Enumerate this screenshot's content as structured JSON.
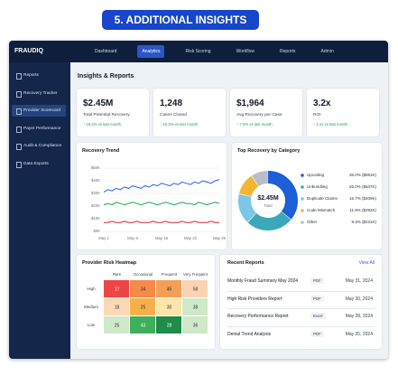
{
  "banner": "5. ADDITIONAL INSIGHTS",
  "app": {
    "logo": "FRAUDIQ",
    "nav": [
      "Dashboard",
      "Analytics",
      "Risk Scoring",
      "Workflow",
      "Reports",
      "Admin"
    ],
    "active_nav": 1,
    "sidebar": [
      "Reports",
      "Recovery Tracker",
      "Provider Scorecard",
      "Payer Performance",
      "Audit & Compliance",
      "Data Exports"
    ],
    "active_sidebar": 2
  },
  "heading": "Insights & Reports",
  "kpis": [
    {
      "value": "$2.45M",
      "label": "Total Potential Recovery",
      "change": "↑ 18.4% vs last month"
    },
    {
      "value": "1,248",
      "label": "Cases Closed",
      "change": "↑ 15.2% vs last month"
    },
    {
      "value": "$1,964",
      "label": "Avg Recovery per Case",
      "change": "↑ 7.0% vs last month"
    },
    {
      "value": "3.2x",
      "label": "ROI",
      "change": "↑ 2.1x vs last month"
    }
  ],
  "recovery_trend": {
    "type": "line",
    "title": "Recovery Trend",
    "categories": [
      "May 1",
      null,
      null,
      null,
      null,
      null,
      null,
      "May 8",
      null,
      null,
      null,
      null,
      null,
      null,
      "May 15",
      null,
      null,
      null,
      null,
      null,
      null,
      "May 22",
      null,
      null,
      null,
      null,
      null,
      null,
      "May 29"
    ],
    "ylim": [
      0,
      50000
    ],
    "yticks": [
      {
        "value": 0,
        "label": "$0K"
      },
      {
        "value": 10000,
        "label": "$10K"
      },
      {
        "value": 20000,
        "label": "$20K"
      },
      {
        "value": 30000,
        "label": "$30K"
      },
      {
        "value": 40000,
        "label": "$40K"
      },
      {
        "value": 50000,
        "label": "$50K"
      }
    ],
    "series": [
      {
        "color": "#2563eb",
        "values": [
          31000,
          33000,
          32000,
          34000,
          33000,
          35000,
          34000,
          36000,
          35000,
          34000,
          36000,
          35000,
          37000,
          36000,
          38000,
          37000,
          36000,
          38000,
          37000,
          39000,
          38000,
          37000,
          39000,
          38000,
          40000,
          39000,
          38000,
          40000,
          41000
        ]
      },
      {
        "color": "#16a34a",
        "values": [
          21000,
          22000,
          21000,
          23000,
          22000,
          21000,
          22000,
          23000,
          22000,
          21000,
          22000,
          23000,
          22000,
          21000,
          22000,
          23000,
          22000,
          21000,
          22000,
          23000,
          22000,
          22000,
          21000,
          23000,
          22000,
          21000,
          22000,
          23000,
          22000
        ]
      },
      {
        "color": "#dc2626",
        "values": [
          7000,
          7000,
          8000,
          7000,
          7000,
          8000,
          7000,
          7000,
          8000,
          7000,
          7000,
          7000,
          8000,
          7000,
          7000,
          8000,
          7000,
          7000,
          7000,
          8000,
          7000,
          7000,
          8000,
          7000,
          7000,
          7000,
          8000,
          7000,
          7000
        ]
      }
    ]
  },
  "category_chart": {
    "type": "donut",
    "title": "Top Recovery by Category",
    "center_value": "$2.45M",
    "center_label": "Total",
    "categories": [
      "Upcoding",
      "Unbundling",
      "Duplicate Claims",
      "Code Mismatch",
      "Other"
    ],
    "values": [
      36.0,
      26.0,
      16.7,
      11.9,
      9.3
    ],
    "value_labels": [
      "36.0% ($881K)",
      "26.0% ($637K)",
      "16.7% ($409K)",
      "11.9% ($292K)",
      "9.3% ($231K)"
    ],
    "colors": [
      "#1d5fd6",
      "#3ba7b8",
      "#7cc6e6",
      "#f2b632",
      "#b8bec8"
    ]
  },
  "heatmap": {
    "title": "Provider Risk Heatmap",
    "columns": [
      "Rare",
      "Occasional",
      "Frequent",
      "Very Frequent"
    ],
    "rows": [
      "High",
      "Medium",
      "Low"
    ],
    "values": [
      [
        17,
        34,
        45,
        58
      ],
      [
        18,
        25,
        30,
        38
      ],
      [
        25,
        43,
        28,
        36
      ]
    ],
    "colors": [
      [
        "#ef4444",
        "#f58a4b",
        "#f59e57",
        "#fbd3b4"
      ],
      [
        "#fbd9b5",
        "#f6b04a",
        "#fbe5a8",
        "#cfe8c9"
      ],
      [
        "#cfe8c9",
        "#3fae5d",
        "#1f8c47",
        "#cfe8c9"
      ]
    ]
  },
  "reports": {
    "title": "Recent Reports",
    "link": "View All",
    "rows": [
      {
        "name": "Monthly Fraud Summary May 2024",
        "format": "PDF",
        "date": "May 31, 2024"
      },
      {
        "name": "High Risk Providers Report",
        "format": "PDF",
        "date": "May 30, 2024"
      },
      {
        "name": "Recovery Performance Report",
        "format": "Excel",
        "date": "May 28, 2024"
      },
      {
        "name": "Denial Trend Analysis",
        "format": "PDF",
        "date": "May 25, 2024"
      }
    ]
  }
}
